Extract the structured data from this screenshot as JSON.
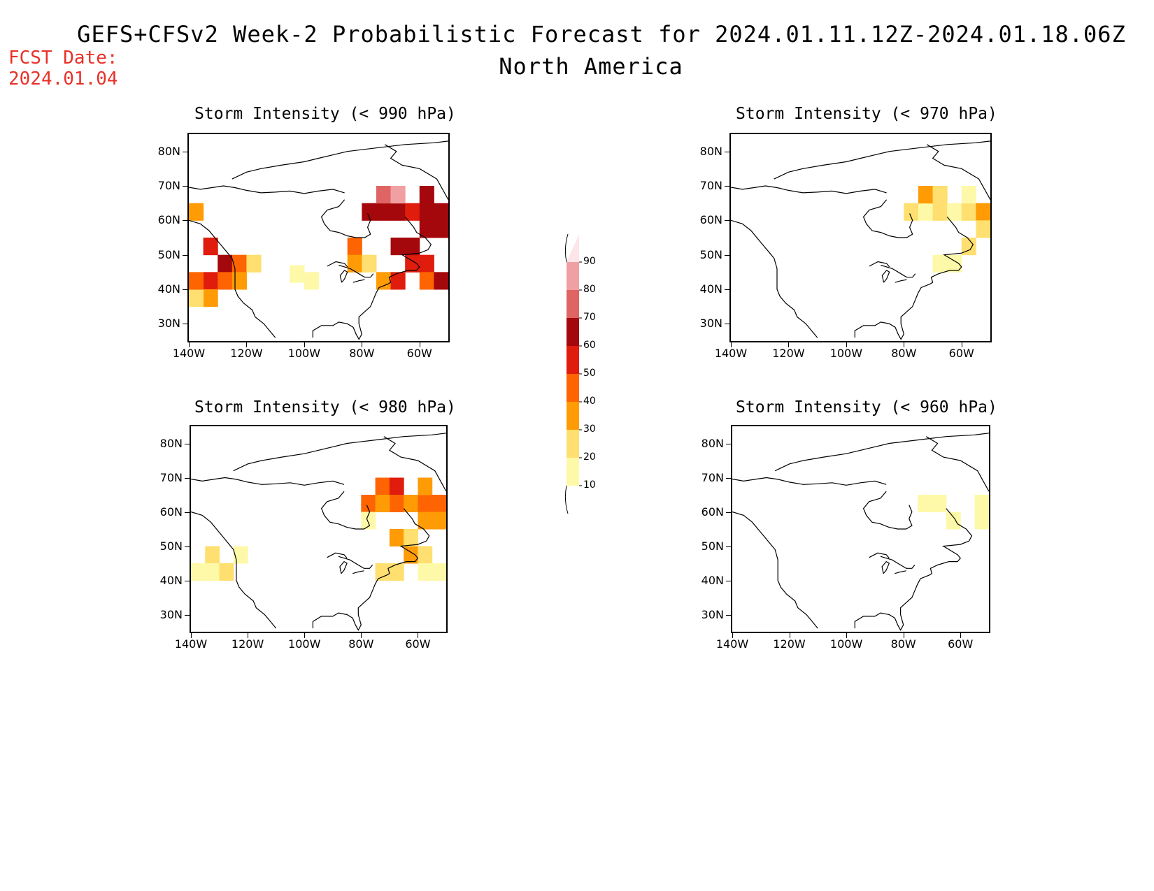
{
  "header": {
    "title_line1": "GEFS+CFSv2 Week-2 Probabilistic Forecast for 2024.01.11.12Z-2024.01.18.06Z",
    "title_line2": "North America",
    "fcst_label": "FCST Date:",
    "fcst_date": "2024.01.04"
  },
  "axes": {
    "lat_labels": [
      "80N",
      "70N",
      "60N",
      "50N",
      "40N",
      "30N"
    ],
    "lon_labels": [
      "140W",
      "120W",
      "100W",
      "80W",
      "60W"
    ],
    "lat_values": [
      80,
      70,
      60,
      50,
      40,
      30
    ],
    "lon_values": [
      -140,
      -120,
      -100,
      -80,
      -60
    ],
    "lat_range": [
      25,
      85
    ],
    "lon_range": [
      -140,
      -50
    ]
  },
  "panels": [
    {
      "title": "Storm Intensity (< 990 hPa)",
      "threshold_hpa": 990
    },
    {
      "title": "Storm Intensity (< 970 hPa)",
      "threshold_hpa": 970
    },
    {
      "title": "Storm Intensity (< 980 hPa)",
      "threshold_hpa": 980
    },
    {
      "title": "Storm Intensity (< 960 hPa)",
      "threshold_hpa": 960
    }
  ],
  "colorbar": {
    "labels": [
      "90",
      "80",
      "70",
      "60",
      "50",
      "40",
      "30",
      "20",
      "10"
    ],
    "colors": [
      "#fde6ea",
      "#f0a0a3",
      "#de6563",
      "#a5080c",
      "#e01c0c",
      "#fe6402",
      "#fe9b05",
      "#fedf6f",
      "#fef9a8"
    ]
  }
}
